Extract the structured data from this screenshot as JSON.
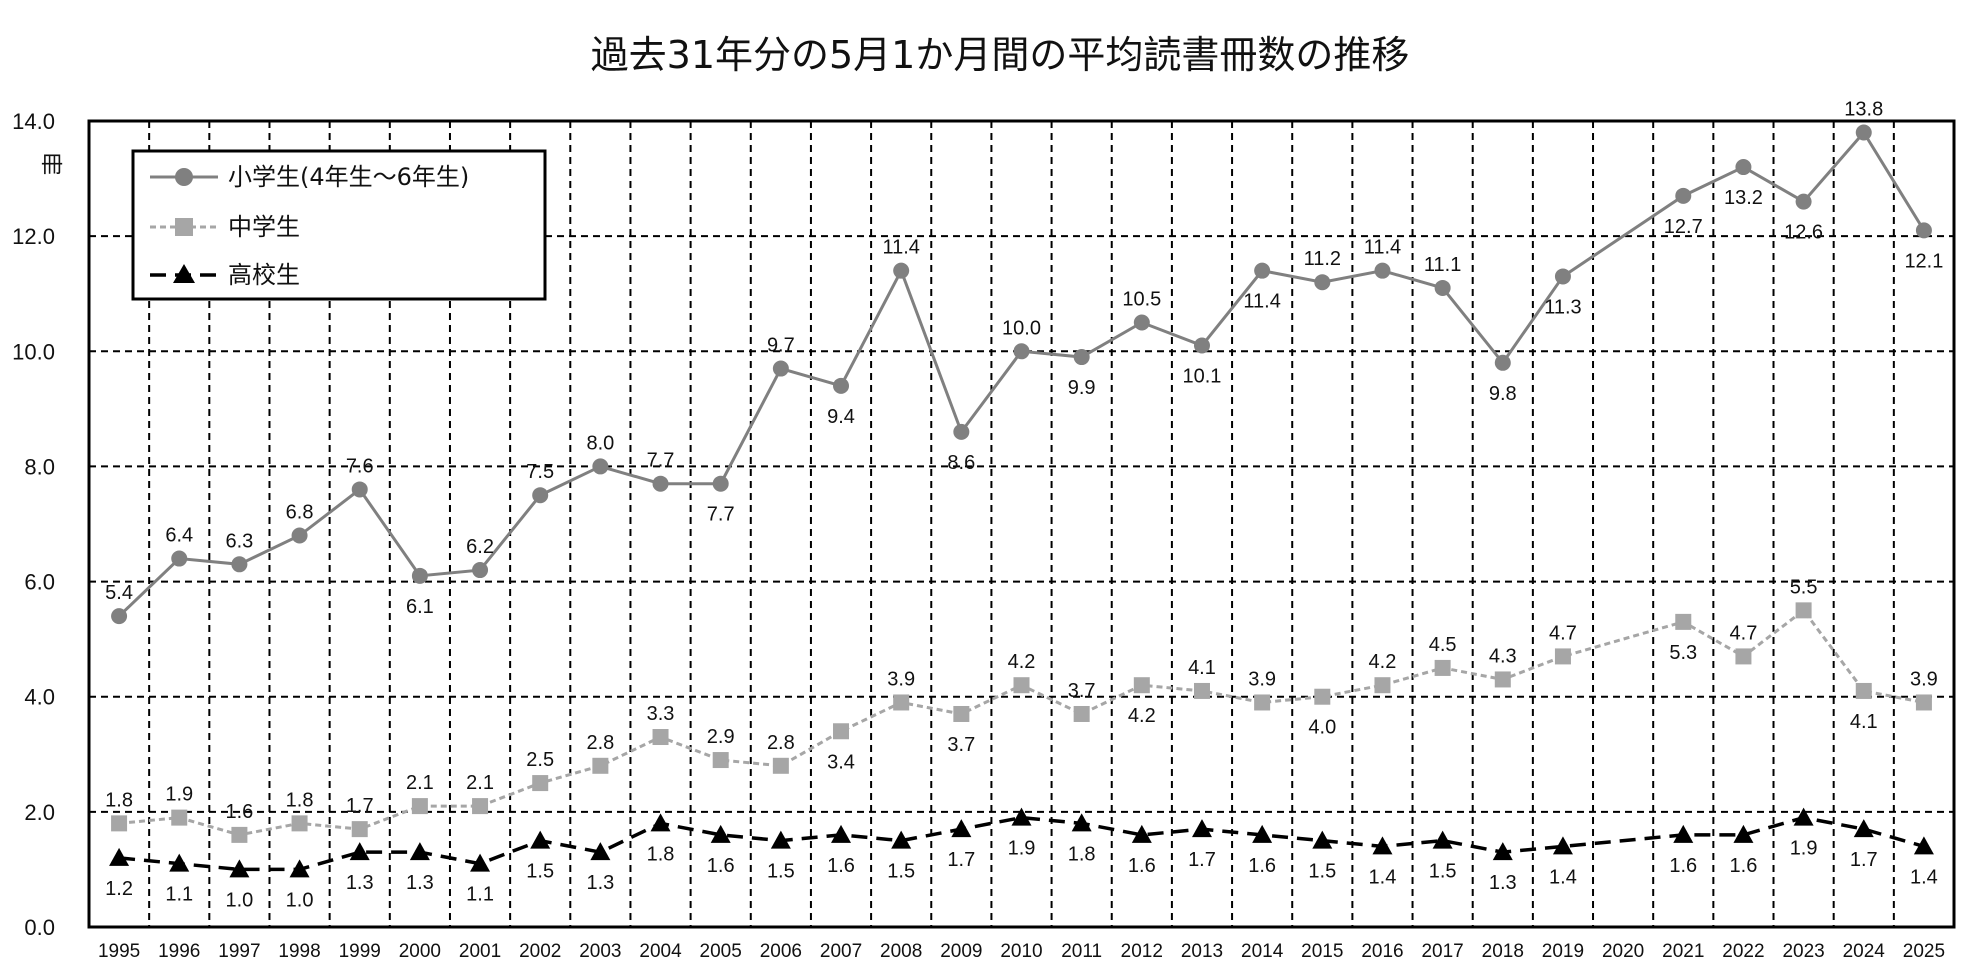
{
  "chart_data": {
    "type": "line",
    "title": "過去31年分の5月1か月間の平均読書冊数の推移",
    "ylabel": "冊",
    "ylim": [
      0,
      14
    ],
    "yticks": [
      "0.0",
      "2.0",
      "4.0",
      "6.0",
      "8.0",
      "10.0",
      "12.0",
      "14.0"
    ],
    "grid": true,
    "legend_position": "top-left",
    "categories": [
      "1995",
      "1996",
      "1997",
      "1998",
      "1999",
      "2000",
      "2001",
      "2002",
      "2003",
      "2004",
      "2005",
      "2006",
      "2007",
      "2008",
      "2009",
      "2010",
      "2011",
      "2012",
      "2013",
      "2014",
      "2015",
      "2016",
      "2017",
      "2018",
      "2019",
      "2020",
      "2021",
      "2022",
      "2023",
      "2024",
      "2025"
    ],
    "series": [
      {
        "name": "小学生(4年生～6年生)",
        "marker": "circle",
        "color": "#808080",
        "values": [
          5.4,
          6.4,
          6.3,
          6.8,
          7.6,
          6.1,
          6.2,
          7.5,
          8.0,
          7.7,
          7.7,
          9.7,
          9.4,
          11.4,
          8.6,
          10.0,
          9.9,
          10.5,
          10.1,
          11.4,
          11.2,
          11.4,
          11.1,
          9.8,
          11.3,
          null,
          12.7,
          13.2,
          12.6,
          13.8,
          12.1
        ],
        "labels": [
          "5.4",
          "6.4",
          "6.3",
          "6.8",
          "7.6",
          "6.1",
          "6.2",
          "7.5",
          "8.0",
          "7.7",
          "7.7",
          "9.7",
          "9.4",
          "11.4",
          "8.6",
          "10.0",
          "9.9",
          "10.5",
          "10.1",
          "11.4",
          "11.2",
          "11.4",
          "11.1",
          "9.8",
          "11.3",
          "",
          "12.7",
          "13.2",
          "12.6",
          "13.8",
          "12.1"
        ]
      },
      {
        "name": "中学生",
        "marker": "square",
        "color": "#a6a6a6",
        "values": [
          1.8,
          1.9,
          1.6,
          1.8,
          1.7,
          2.1,
          2.1,
          2.5,
          2.8,
          3.3,
          2.9,
          2.8,
          3.4,
          3.9,
          3.7,
          4.2,
          3.7,
          4.2,
          4.1,
          3.9,
          4.0,
          4.2,
          4.5,
          4.3,
          4.7,
          null,
          5.3,
          4.7,
          5.5,
          4.1,
          3.9
        ],
        "labels": [
          "1.8",
          "1.9",
          "1.6",
          "1.8",
          "1.7",
          "2.1",
          "2.1",
          "2.5",
          "2.8",
          "3.3",
          "2.9",
          "2.8",
          "3.4",
          "3.9",
          "3.7",
          "4.2",
          "3.7",
          "4.2",
          "4.1",
          "3.9",
          "4.0",
          "4.2",
          "4.5",
          "4.3",
          "4.7",
          "",
          "5.3",
          "4.7",
          "5.5",
          "4.1",
          "3.9"
        ]
      },
      {
        "name": "高校生",
        "marker": "triangle",
        "color": "#000000",
        "values": [
          1.2,
          1.1,
          1.0,
          1.0,
          1.3,
          1.3,
          1.1,
          1.5,
          1.3,
          1.8,
          1.6,
          1.5,
          1.6,
          1.5,
          1.7,
          1.9,
          1.8,
          1.6,
          1.7,
          1.6,
          1.5,
          1.4,
          1.5,
          1.3,
          1.4,
          null,
          1.6,
          1.6,
          1.9,
          1.7,
          1.4
        ],
        "labels": [
          "1.2",
          "1.1",
          "1.0",
          "1.0",
          "1.3",
          "1.3",
          "1.1",
          "1.5",
          "1.3",
          "1.8",
          "1.6",
          "1.5",
          "1.6",
          "1.5",
          "1.7",
          "1.9",
          "1.8",
          "1.6",
          "1.7",
          "1.6",
          "1.5",
          "1.4",
          "1.5",
          "1.3",
          "1.4",
          "",
          "1.6",
          "1.6",
          "1.9",
          "1.7",
          "1.4"
        ]
      }
    ]
  }
}
